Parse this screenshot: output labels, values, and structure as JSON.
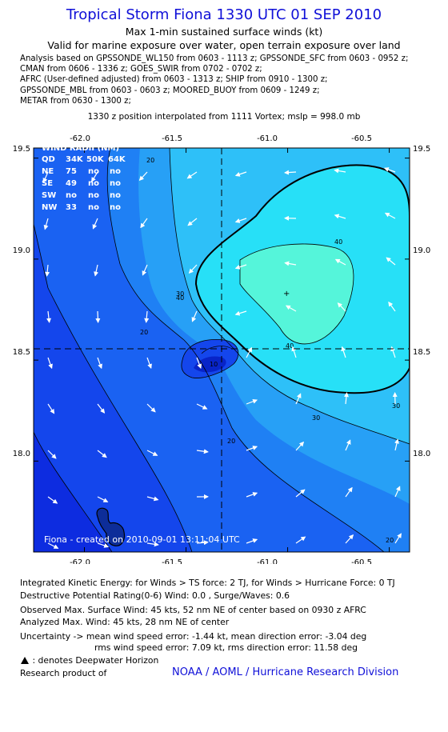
{
  "title": "Tropical Storm Fiona 1330 UTC 01 SEP 2010",
  "subtitle1": "Max 1-min sustained surface winds (kt)",
  "subtitle2": "Valid for marine exposure over water, open terrain exposure over land",
  "analysis_lines": [
    "Analysis based on GPSSONDE_WL150 from 0603 - 1113 z; GPSSONDE_SFC from 0603 - 0952 z;",
    "CMAN from 0606 - 1336 z; GOES_SWIR from 0702 - 0702 z;",
    "AFRC (User-defined adjusted) from 0603 - 1313 z; SHIP from 0910 - 1300 z;",
    "GPSSONDE_MBL from 0603 - 0603 z; MOORED_BUOY from 0609 - 1249 z;",
    "METAR from 0630 - 1300 z;"
  ],
  "position_line": "1330 z position interpolated from 1111 Vortex; mslp = 998.0 mb",
  "map": {
    "lon_ticks": [
      "-62.0",
      "-61.5",
      "-61.0",
      "-60.5"
    ],
    "lat_ticks": [
      "19.5",
      "19.0",
      "18.5",
      "18.0"
    ],
    "lon_range": [
      -62.25,
      -60.4
    ],
    "lat_range": [
      17.55,
      19.55
    ],
    "center": {
      "lon": -61.21,
      "lat": 18.52
    },
    "contour_labels": [
      "20",
      "30",
      "40",
      "40",
      "30",
      "30",
      "20",
      "20",
      "10"
    ],
    "colors": {
      "w0": "#0d2ce0",
      "w10": "#1446ec",
      "w15": "#1a62f2",
      "w20": "#1f80f4",
      "w25": "#27a0f6",
      "w30": "#2ec0f8",
      "w35": "#27e0f7",
      "w40": "#55f5da"
    },
    "wind_radii": {
      "title": "WIND RADII (NM)",
      "header": [
        "QD",
        "34K",
        "50K",
        "64K"
      ],
      "rows": [
        [
          "NE",
          "75",
          "no",
          "no"
        ],
        [
          "SE",
          "49",
          "no",
          "no"
        ],
        [
          "SW",
          "no",
          "no",
          "no"
        ],
        [
          "NW",
          "33",
          "no",
          "no"
        ]
      ]
    },
    "credit": "Fiona - created on 2010-09-01 13:11:04 UTC"
  },
  "ike_line": "Integrated Kinetic Energy:  for Winds > TS force: 2 TJ,  for Winds > Hurricane Force: 0 TJ",
  "dpr_line": "Destructive Potential Rating(0-6)   Wind: 0.0 , Surge/Waves: 0.6",
  "obs_line": "Observed Max. Surface Wind: 45 kts, 52 nm NE of center based on 0930 z AFRC",
  "analyzed_line": "Analyzed Max. Wind: 45 kts, 28 nm NE of center",
  "uncertainty_line1": "Uncertainty -> mean wind speed error:  -1.44 kt,    mean direction error:  -3.04 deg",
  "uncertainty_line2": "rms wind speed error: 7.09 kt,   rms direction error: 11.58 deg",
  "deepwater_line": ": denotes Deepwater Horizon",
  "research_line": "Research product of",
  "noaa_line": "NOAA / AOML / Hurricane Research Division"
}
